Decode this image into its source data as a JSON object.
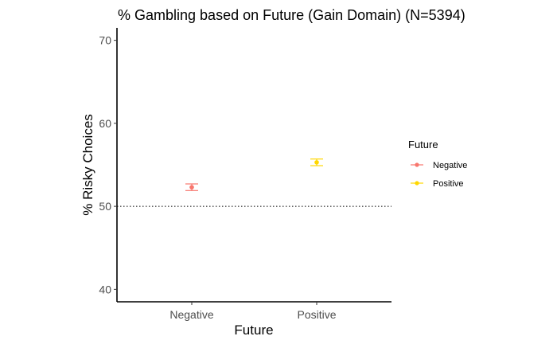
{
  "chart_data": {
    "type": "scatter",
    "title": "% Gambling based on Future (Gain Domain) (N=5394)",
    "xlabel": "Future",
    "ylabel": "% Risky Choices",
    "categories": [
      "Negative",
      "Positive"
    ],
    "series": [
      {
        "name": "Negative",
        "category": "Negative",
        "value": 52.3,
        "lower": 51.9,
        "upper": 52.7,
        "color": "#F8766D"
      },
      {
        "name": "Positive",
        "category": "Positive",
        "value": 55.3,
        "lower": 54.9,
        "upper": 55.7,
        "color": "#FFD700"
      }
    ],
    "ylim": [
      38.5,
      71.5
    ],
    "yticks": [
      40,
      50,
      60,
      70
    ],
    "reference_line": {
      "y": 50,
      "style": "dotted"
    },
    "legend": {
      "title": "Future",
      "position": "right"
    },
    "grid": false
  }
}
